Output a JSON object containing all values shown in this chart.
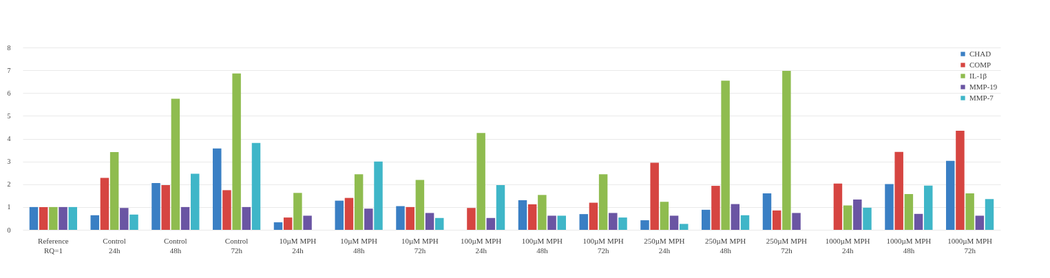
{
  "chart_data": {
    "type": "bar",
    "categories": [
      "Reference\nRQ=1",
      "Control\n24h",
      "Control\n48h",
      "Control\n72h",
      "10µM MPH\n24h",
      "10µM MPH\n48h",
      "10µM MPH\n72h",
      "100µM MPH\n24h",
      "100µM MPH\n48h",
      "100µM MPH\n72h",
      "250µM MPH\n24h",
      "250µM MPH\n48h",
      "250µM MPH\n72h",
      "1000µM MPH\n24h",
      "1000µM MPH\n48h",
      "1000µM MPH\n72h"
    ],
    "series": [
      {
        "name": "CHAD",
        "color": "#3a7fc4",
        "values": [
          1,
          0.64,
          2.05,
          3.57,
          0.33,
          1.28,
          1.04,
          null,
          1.3,
          0.69,
          0.42,
          0.88,
          1.6,
          null,
          2.01,
          3.03
        ]
      },
      {
        "name": "COMP",
        "color": "#d64541",
        "values": [
          1,
          2.28,
          1.96,
          1.74,
          0.54,
          1.4,
          1.0,
          0.96,
          1.12,
          1.19,
          2.94,
          1.93,
          0.85,
          2.03,
          3.42,
          4.35
        ]
      },
      {
        "name": "IL-1β",
        "color": "#8fbc4f",
        "values": [
          1,
          3.41,
          5.75,
          6.86,
          1.62,
          2.44,
          2.19,
          4.25,
          1.53,
          2.44,
          1.23,
          6.54,
          6.97,
          1.07,
          1.57,
          1.6
        ]
      },
      {
        "name": "MMP-19",
        "color": "#6a55a3",
        "values": [
          1,
          0.96,
          1.0,
          1.0,
          0.62,
          0.93,
          0.74,
          0.52,
          0.62,
          0.74,
          0.62,
          1.13,
          0.74,
          1.33,
          0.7,
          0.62
        ]
      },
      {
        "name": "MMP-7",
        "color": "#3fb6c8",
        "values": [
          1,
          0.67,
          2.46,
          3.81,
          null,
          3.0,
          0.52,
          1.96,
          0.62,
          0.54,
          0.26,
          0.64,
          null,
          0.97,
          1.94,
          1.35
        ]
      }
    ],
    "ylim": [
      0,
      8
    ],
    "yticks": [
      0,
      1,
      2,
      3,
      4,
      5,
      6,
      7,
      8
    ],
    "grid": "y",
    "legend": "top right"
  }
}
